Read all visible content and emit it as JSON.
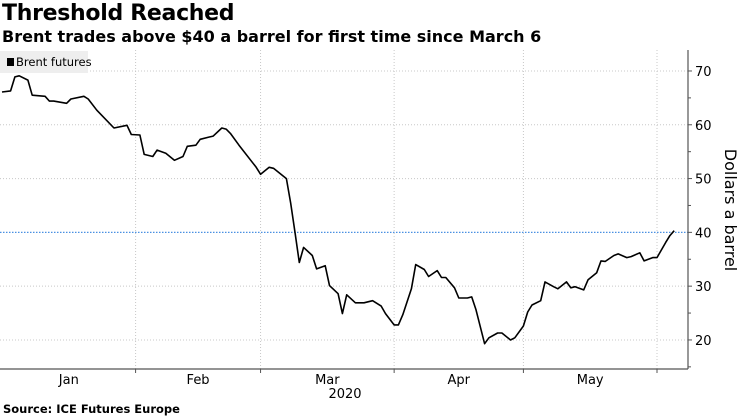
{
  "title": "Threshold Reached",
  "subtitle": "Brent trades above $40 a barrel for first time since March 6",
  "source": "Source: ICE Futures Europe",
  "chart_data": {
    "type": "line",
    "xlabel": "",
    "ylabel": "Dollars a barrel",
    "x_tick_labels": [
      "Jan",
      "Feb",
      "Mar",
      "Apr",
      "May"
    ],
    "x_year_label": "2020",
    "y_ticks": [
      20,
      30,
      40,
      50,
      60,
      70
    ],
    "ylim": [
      14.6,
      73.9
    ],
    "xlim": [
      "2020-01-01",
      "2020-06-06"
    ],
    "grid": true,
    "legend": "top-left",
    "reference_line": {
      "value": 40,
      "color": "#4a90e2"
    },
    "series": [
      {
        "name": "Brent futures",
        "color": "#000000",
        "points": [
          [
            "2020-01-01",
            66.1
          ],
          [
            "2020-01-03",
            66.3
          ],
          [
            "2020-01-04",
            68.9
          ],
          [
            "2020-01-05",
            69.1
          ],
          [
            "2020-01-07",
            68.3
          ],
          [
            "2020-01-08",
            65.5
          ],
          [
            "2020-01-11",
            65.3
          ],
          [
            "2020-01-12",
            64.4
          ],
          [
            "2020-01-13",
            64.4
          ],
          [
            "2020-01-16",
            64.0
          ],
          [
            "2020-01-17",
            64.8
          ],
          [
            "2020-01-20",
            65.3
          ],
          [
            "2020-01-21",
            64.8
          ],
          [
            "2020-01-23",
            62.7
          ],
          [
            "2020-01-27",
            59.4
          ],
          [
            "2020-01-30",
            59.9
          ],
          [
            "2020-01-31",
            58.2
          ],
          [
            "2020-02-02",
            58.1
          ],
          [
            "2020-02-03",
            54.5
          ],
          [
            "2020-02-05",
            54.1
          ],
          [
            "2020-02-06",
            55.3
          ],
          [
            "2020-02-08",
            54.7
          ],
          [
            "2020-02-10",
            53.4
          ],
          [
            "2020-02-12",
            54.1
          ],
          [
            "2020-02-13",
            56.0
          ],
          [
            "2020-02-15",
            56.2
          ],
          [
            "2020-02-16",
            57.3
          ],
          [
            "2020-02-18",
            57.7
          ],
          [
            "2020-02-19",
            57.9
          ],
          [
            "2020-02-21",
            59.4
          ],
          [
            "2020-02-22",
            59.2
          ],
          [
            "2020-02-23",
            58.4
          ],
          [
            "2020-02-25",
            56.2
          ],
          [
            "2020-02-29",
            52.1
          ],
          [
            "2020-03-01",
            50.8
          ],
          [
            "2020-03-03",
            52.1
          ],
          [
            "2020-03-04",
            51.9
          ],
          [
            "2020-03-07",
            50.0
          ],
          [
            "2020-03-08",
            45.4
          ],
          [
            "2020-03-09",
            40.0
          ],
          [
            "2020-03-10",
            34.4
          ],
          [
            "2020-03-11",
            37.2
          ],
          [
            "2020-03-13",
            35.7
          ],
          [
            "2020-03-14",
            33.2
          ],
          [
            "2020-03-16",
            33.8
          ],
          [
            "2020-03-17",
            30.1
          ],
          [
            "2020-03-19",
            28.6
          ],
          [
            "2020-03-20",
            24.9
          ],
          [
            "2020-03-21",
            28.4
          ],
          [
            "2020-03-23",
            26.9
          ],
          [
            "2020-03-25",
            26.9
          ],
          [
            "2020-03-27",
            27.3
          ],
          [
            "2020-03-29",
            26.3
          ],
          [
            "2020-03-30",
            24.9
          ],
          [
            "2020-04-01",
            22.8
          ],
          [
            "2020-04-02",
            22.8
          ],
          [
            "2020-04-03",
            24.7
          ],
          [
            "2020-04-05",
            29.5
          ],
          [
            "2020-04-06",
            34.0
          ],
          [
            "2020-04-08",
            33.1
          ],
          [
            "2020-04-09",
            31.8
          ],
          [
            "2020-04-11",
            32.9
          ],
          [
            "2020-04-12",
            31.6
          ],
          [
            "2020-04-13",
            31.6
          ],
          [
            "2020-04-15",
            29.7
          ],
          [
            "2020-04-16",
            27.8
          ],
          [
            "2020-04-18",
            27.8
          ],
          [
            "2020-04-19",
            28.0
          ],
          [
            "2020-04-20",
            25.6
          ],
          [
            "2020-04-22",
            19.3
          ],
          [
            "2020-04-23",
            20.4
          ],
          [
            "2020-04-25",
            21.3
          ],
          [
            "2020-04-26",
            21.3
          ],
          [
            "2020-04-28",
            20.0
          ],
          [
            "2020-04-29",
            20.4
          ],
          [
            "2020-05-01",
            22.6
          ],
          [
            "2020-05-02",
            25.2
          ],
          [
            "2020-05-03",
            26.5
          ],
          [
            "2020-05-05",
            27.3
          ],
          [
            "2020-05-06",
            30.8
          ],
          [
            "2020-05-08",
            29.9
          ],
          [
            "2020-05-09",
            29.5
          ],
          [
            "2020-05-11",
            30.8
          ],
          [
            "2020-05-12",
            29.7
          ],
          [
            "2020-05-13",
            29.9
          ],
          [
            "2020-05-15",
            29.3
          ],
          [
            "2020-05-16",
            31.2
          ],
          [
            "2020-05-18",
            32.5
          ],
          [
            "2020-05-19",
            34.7
          ],
          [
            "2020-05-20",
            34.6
          ],
          [
            "2020-05-22",
            35.7
          ],
          [
            "2020-05-23",
            36.0
          ],
          [
            "2020-05-25",
            35.3
          ],
          [
            "2020-05-26",
            35.5
          ],
          [
            "2020-05-28",
            36.2
          ],
          [
            "2020-05-29",
            34.7
          ],
          [
            "2020-05-31",
            35.3
          ],
          [
            "2020-06-01",
            35.3
          ],
          [
            "2020-06-03",
            38.1
          ],
          [
            "2020-06-04",
            39.4
          ],
          [
            "2020-06-05",
            40.3
          ]
        ]
      }
    ]
  }
}
